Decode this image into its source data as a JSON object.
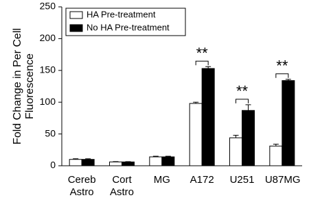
{
  "chart_data": {
    "type": "bar",
    "ylabel": "Fold Change in Per Cell Fluorescence",
    "categories": [
      "Cereb Astro",
      "Cort Astro",
      "MG",
      "A172",
      "U251",
      "U87MG"
    ],
    "series": [
      {
        "name": "HA Pre-treatment",
        "color": "#ffffff",
        "values": [
          10,
          6,
          14,
          98,
          44,
          31
        ],
        "errors": [
          1,
          0.5,
          1,
          2,
          4,
          3
        ]
      },
      {
        "name": "No HA Pre-treatment",
        "color": "#000000",
        "values": [
          10,
          6,
          14,
          153,
          87,
          134
        ],
        "errors": [
          1,
          0.5,
          1,
          3,
          9,
          2
        ]
      }
    ],
    "significance_labels": [
      null,
      null,
      null,
      "**",
      "**",
      "**"
    ],
    "ylim": [
      0,
      250
    ],
    "yticks": [
      0,
      50,
      100,
      150,
      200,
      250
    ],
    "legend": "upper left"
  }
}
